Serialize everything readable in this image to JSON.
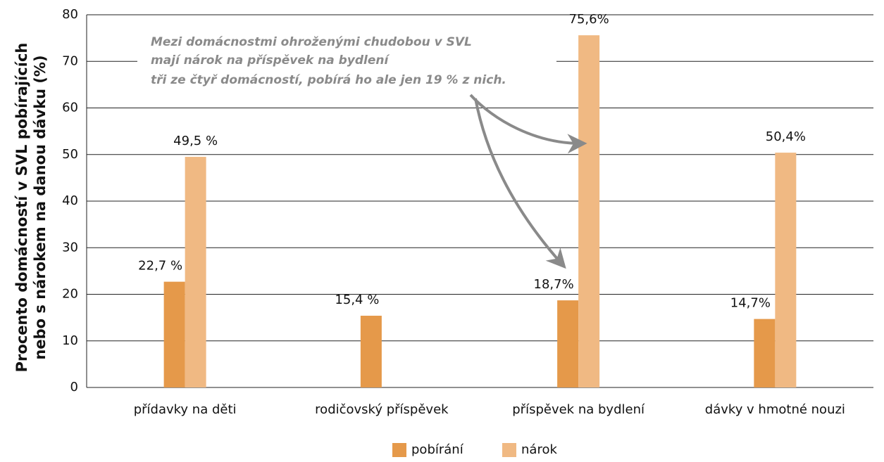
{
  "chart_data": {
    "type": "bar",
    "ylabel": [
      "Procento domácností v SVL pobírajících",
      "nebo s nárokem na danou dávku (%)"
    ],
    "categories": [
      "přídavky na děti",
      "rodičovský příspěvek",
      "příspěvek na bydlení",
      "dávky v hmotné nouzi"
    ],
    "series": [
      {
        "name": "pobírání",
        "color": "#e5994a",
        "values": [
          22.7,
          15.4,
          18.7,
          14.7
        ],
        "value_labels": [
          "22,7 %",
          "15,4  %",
          "18,7%",
          "14,7%"
        ]
      },
      {
        "name": "nárok",
        "color": "#f0b983",
        "values": [
          49.5,
          null,
          75.6,
          50.4
        ],
        "value_labels": [
          "49,5 %",
          null,
          "75,6%",
          "50,4%"
        ]
      }
    ],
    "annotation": [
      "Mezi domácnostmi ohroženými chudobou v SVL",
      "mají nárok na příspěvek na bydlení",
      "tři ze čtyř domácností, pobírá ho ale jen 19 % z nich."
    ],
    "ylim": [
      0,
      80
    ],
    "yticks": [
      0,
      10,
      20,
      30,
      40,
      50,
      60,
      70,
      80
    ],
    "grid": true,
    "legend": "bottom"
  }
}
